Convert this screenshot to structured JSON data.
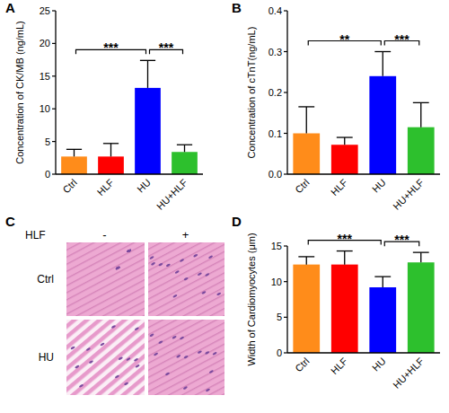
{
  "chart_data": [
    {
      "type": "bar",
      "panel_label": "A",
      "y_label": "Concentration of CK/MB (ng/mL)",
      "categories": [
        "Ctrl",
        "HLF",
        "HU",
        "HU+HLF"
      ],
      "values": [
        2.7,
        2.7,
        13.2,
        3.4
      ],
      "errors": [
        1.1,
        2.0,
        4.2,
        1.1
      ],
      "colors": [
        "#ff8c1a",
        "#ff0000",
        "#0000ff",
        "#2dc02d"
      ],
      "ylim": [
        0,
        25
      ],
      "yticks": [
        0,
        5,
        10,
        15,
        20,
        25
      ],
      "significance": [
        {
          "between": [
            "Ctrl",
            "HU"
          ],
          "label": "***"
        },
        {
          "between": [
            "HU",
            "HU+HLF"
          ],
          "label": "***"
        }
      ]
    },
    {
      "type": "bar",
      "panel_label": "B",
      "y_label": "Concentration of cTnT(ng/mL)",
      "categories": [
        "Ctrl",
        "HLF",
        "HU",
        "HU+HLF"
      ],
      "values": [
        0.1,
        0.072,
        0.24,
        0.115
      ],
      "errors": [
        0.065,
        0.018,
        0.06,
        0.06
      ],
      "colors": [
        "#ff8c1a",
        "#ff0000",
        "#0000ff",
        "#2dc02d"
      ],
      "ylim": [
        0,
        0.4
      ],
      "yticks": [
        {
          "value": 0,
          "label": "0.0"
        },
        0.1,
        0.2,
        0.3,
        0.4
      ],
      "significance": [
        {
          "between": [
            "Ctrl",
            "HU"
          ],
          "label": "**"
        },
        {
          "between": [
            "HU",
            "HU+HLF"
          ],
          "label": "***"
        }
      ]
    },
    {
      "type": "bar",
      "panel_label": "D",
      "y_label": "Width of Cardiomyocytes (μm)",
      "categories": [
        "Ctrl",
        "HLF",
        "HU",
        "HU+HLF"
      ],
      "values": [
        12.4,
        12.4,
        9.2,
        12.7
      ],
      "errors": [
        1.1,
        1.9,
        1.5,
        1.4
      ],
      "colors": [
        "#ff8c1a",
        "#ff0000",
        "#0000ff",
        "#2dc02d"
      ],
      "ylim": [
        0,
        15
      ],
      "yticks": [
        0,
        5,
        10,
        15
      ],
      "significance": [
        {
          "between": [
            "Ctrl",
            "HU"
          ],
          "label": "***"
        },
        {
          "between": [
            "HU",
            "HU+HLF"
          ],
          "label": "***"
        }
      ]
    }
  ],
  "image_panel": {
    "panel_label": "C",
    "column_header": "HLF",
    "columns": [
      "-",
      "+"
    ],
    "rows": [
      "Ctrl",
      "HU"
    ]
  }
}
